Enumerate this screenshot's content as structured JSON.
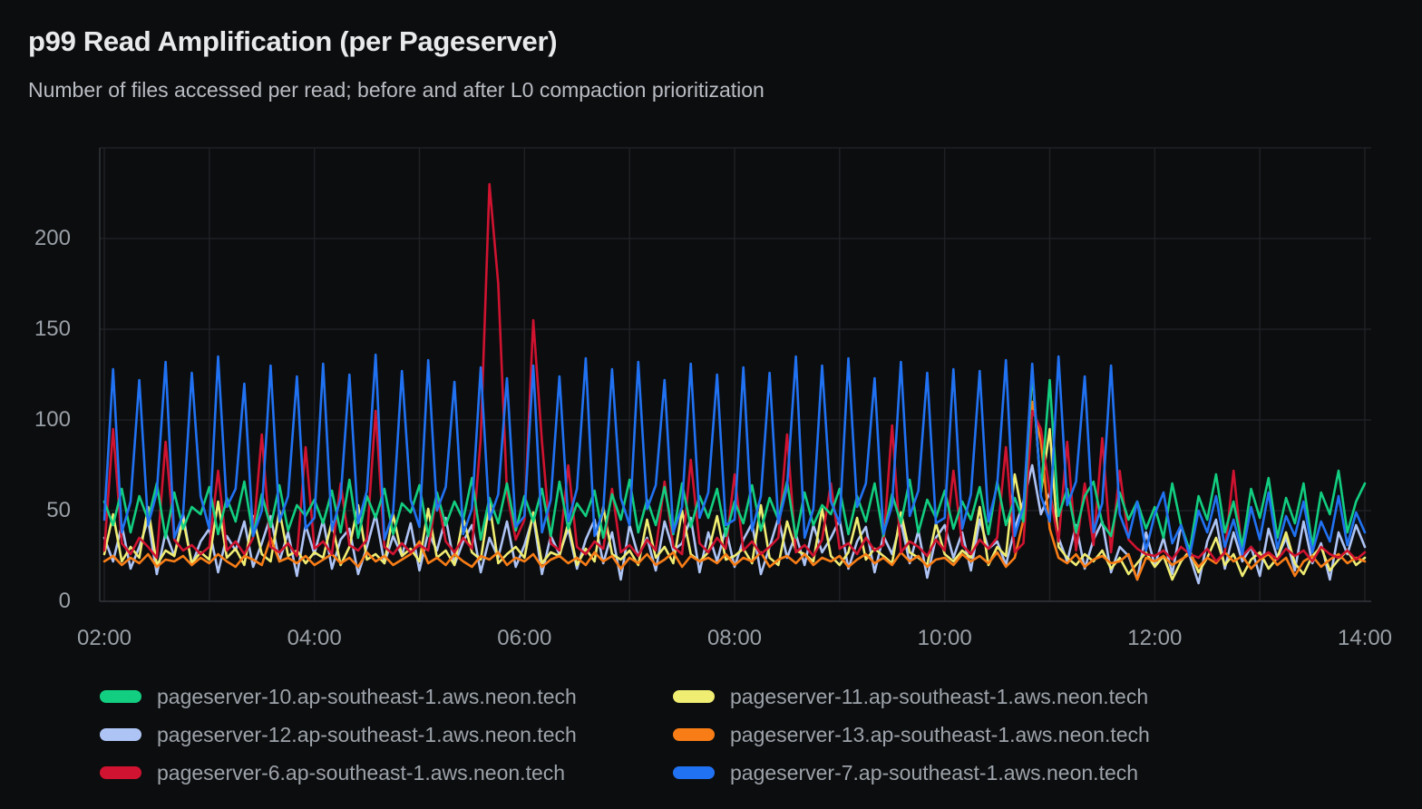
{
  "panel": {
    "title": "p99 Read Amplification (per Pageserver)",
    "subtitle": "Number of files accessed per read; before and after L0 compaction prioritization"
  },
  "colors": {
    "background": "#0c0d0f",
    "gridline": "#1e2024",
    "axis_line": "#32363c",
    "title_text": "#e8eaec",
    "subtitle_text": "#b9bdc3",
    "tick_text": "#9aa0a7",
    "legend_text": "#9da3aa"
  },
  "chart_data": {
    "type": "line",
    "title": "p99 Read Amplification (per Pageserver)",
    "subtitle": "Number of files accessed per read; before and after L0 compaction prioritization",
    "xlabel": "",
    "ylabel": "",
    "grid": "on",
    "legend_position": "bottom",
    "ylim": [
      0,
      250
    ],
    "y_ticks": [
      0,
      50,
      100,
      150,
      200
    ],
    "x_tick_labels": [
      "02:00",
      "04:00",
      "06:00",
      "08:00",
      "10:00",
      "12:00",
      "14:00"
    ],
    "x_tick_hours": [
      2,
      4,
      6,
      8,
      10,
      12,
      14
    ],
    "x_start_minutes": 120,
    "x_step_minutes": 5,
    "draw_order": [
      2,
      1,
      3,
      4,
      0,
      5
    ],
    "series": [
      {
        "name": "pageserver-10.ap-southeast-1.aws.neon.tech",
        "color": "#12ce80",
        "values": [
          55,
          42,
          62,
          38,
          58,
          45,
          65,
          35,
          60,
          40,
          52,
          48,
          63,
          37,
          57,
          44,
          66,
          36,
          59,
          41,
          64,
          39,
          53,
          47,
          56,
          43,
          61,
          38,
          67,
          35,
          58,
          46,
          62,
          37,
          54,
          49,
          64,
          36,
          60,
          42,
          55,
          45,
          68,
          34,
          57,
          43,
          65,
          39,
          58,
          44,
          62,
          36,
          66,
          40,
          54,
          47,
          61,
          35,
          59,
          45,
          67,
          38,
          56,
          42,
          63,
          37,
          65,
          41,
          58,
          46,
          62,
          36,
          55,
          43,
          64,
          39,
          57,
          45,
          66,
          35,
          60,
          42,
          53,
          48,
          62,
          37,
          58,
          44,
          65,
          36,
          59,
          43,
          67,
          38,
          56,
          46,
          61,
          40,
          55,
          45,
          63,
          37,
          66,
          42,
          57,
          44,
          128,
          60,
          122,
          47,
          62,
          38,
          58,
          66,
          43,
          36,
          60,
          45,
          55,
          40,
          52,
          35,
          65,
          42,
          28,
          58,
          45,
          70,
          38,
          55,
          30,
          62,
          46,
          68,
          35,
          57,
          43,
          65,
          30,
          60,
          48,
          72,
          38,
          55,
          65
        ]
      },
      {
        "name": "pageserver-11.ap-southeast-1.aws.neon.tech",
        "color": "#efed72",
        "values": [
          26,
          48,
          22,
          30,
          24,
          52,
          20,
          28,
          25,
          45,
          21,
          27,
          23,
          55,
          24,
          29,
          20,
          47,
          26,
          22,
          50,
          25,
          28,
          21,
          27,
          24,
          44,
          20,
          30,
          53,
          23,
          26,
          21,
          48,
          25,
          29,
          22,
          51,
          24,
          28,
          20,
          46,
          27,
          23,
          54,
          21,
          26,
          30,
          24,
          49,
          21,
          27,
          25,
          43,
          20,
          29,
          22,
          52,
          26,
          23,
          28,
          20,
          45,
          24,
          30,
          21,
          50,
          26,
          22,
          27,
          47,
          23,
          25,
          29,
          21,
          53,
          24,
          20,
          44,
          28,
          26,
          22,
          51,
          25,
          20,
          27,
          46,
          23,
          29,
          25,
          21,
          49,
          27,
          24,
          20,
          43,
          26,
          22,
          28,
          24,
          52,
          20,
          30,
          25,
          70,
          45,
          127,
          60,
          95,
          30,
          24,
          20,
          26,
          22,
          28,
          18,
          24,
          15,
          21,
          27,
          19,
          25,
          12,
          22,
          28,
          16,
          24,
          35,
          20,
          26,
          14,
          23,
          27,
          18,
          24,
          38,
          21,
          15,
          25,
          30,
          17,
          23,
          28,
          20,
          24
        ]
      },
      {
        "name": "pageserver-12.ap-southeast-1.aws.neon.tech",
        "color": "#aec4f5",
        "values": [
          35,
          22,
          42,
          18,
          30,
          45,
          15,
          38,
          25,
          48,
          20,
          33,
          40,
          16,
          36,
          28,
          44,
          19,
          32,
          47,
          22,
          38,
          14,
          42,
          26,
          45,
          18,
          34,
          40,
          15,
          30,
          48,
          21,
          36,
          25,
          43,
          17,
          38,
          28,
          46,
          20,
          33,
          42,
          16,
          35,
          24,
          44,
          19,
          31,
          47,
          15,
          36,
          26,
          40,
          18,
          34,
          45,
          21,
          38,
          12,
          42,
          25,
          35,
          17,
          44,
          28,
          32,
          46,
          16,
          38,
          22,
          40,
          19,
          34,
          43,
          15,
          30,
          46,
          24,
          37,
          20,
          42,
          27,
          35,
          45,
          18,
          33,
          41,
          16,
          36,
          26,
          44,
          21,
          39,
          13,
          35,
          42,
          24,
          38,
          17,
          45,
          29,
          33,
          20,
          40,
          55,
          75,
          48,
          60,
          35,
          22,
          42,
          18,
          34,
          44,
          16,
          30,
          25,
          12,
          38,
          20,
          35,
          15,
          42,
          25,
          10,
          33,
          45,
          18,
          38,
          22,
          30,
          14,
          40,
          24,
          35,
          17,
          44,
          21,
          32,
          12,
          38,
          26,
          42,
          30
        ]
      },
      {
        "name": "pageserver-13.ap-southeast-1.aws.neon.tech",
        "color": "#f87d16",
        "values": [
          22,
          25,
          20,
          24,
          21,
          26,
          19,
          23,
          22,
          25,
          20,
          24,
          21,
          26,
          22,
          19,
          25,
          23,
          20,
          35,
          22,
          24,
          21,
          25,
          20,
          23,
          26,
          21,
          24,
          19,
          27,
          22,
          25,
          20,
          23,
          26,
          33,
          21,
          24,
          20,
          26,
          22,
          19,
          25,
          23,
          27,
          20,
          24,
          22,
          26,
          19,
          23,
          25,
          21,
          24,
          20,
          27,
          22,
          25,
          18,
          24,
          21,
          26,
          20,
          23,
          27,
          19,
          25,
          22,
          24,
          21,
          26,
          20,
          24,
          22,
          27,
          19,
          23,
          25,
          21,
          26,
          20,
          24,
          22,
          25,
          19,
          23,
          26,
          21,
          24,
          20,
          27,
          22,
          25,
          19,
          23,
          24,
          20,
          26,
          22,
          25,
          21,
          27,
          19,
          24,
          45,
          110,
          88,
          40,
          24,
          21,
          26,
          19,
          23,
          25,
          21,
          22,
          26,
          12,
          24,
          22,
          25,
          20,
          23,
          26,
          19,
          24,
          21,
          27,
          22,
          25,
          18,
          23,
          26,
          20,
          24,
          14,
          22,
          25,
          19,
          23,
          26,
          21,
          24,
          22
        ]
      },
      {
        "name": "pageserver-6.ap-southeast-1.aws.neon.tech",
        "color": "#d01330",
        "values": [
          28,
          95,
          32,
          26,
          35,
          30,
          24,
          88,
          34,
          28,
          31,
          26,
          30,
          72,
          28,
          33,
          26,
          35,
          92,
          30,
          27,
          32,
          25,
          85,
          29,
          33,
          26,
          65,
          31,
          28,
          34,
          105,
          30,
          26,
          32,
          27,
          31,
          28,
          60,
          33,
          27,
          35,
          29,
          90,
          230,
          175,
          60,
          34,
          45,
          155,
          88,
          32,
          28,
          75,
          30,
          26,
          33,
          29,
          62,
          27,
          31,
          25,
          34,
          28,
          66,
          30,
          26,
          78,
          32,
          27,
          35,
          29,
          70,
          28,
          33,
          26,
          30,
          35,
          92,
          27,
          31,
          25,
          34,
          65,
          29,
          32,
          26,
          35,
          28,
          31,
          97,
          27,
          33,
          30,
          25,
          34,
          28,
          72,
          31,
          26,
          34,
          29,
          35,
          85,
          27,
          32,
          105,
          95,
          60,
          33,
          88,
          28,
          65,
          31,
          90,
          27,
          72,
          34,
          29,
          26,
          25,
          28,
          23,
          30,
          26,
          24,
          29,
          22,
          27,
          72,
          25,
          30,
          24,
          27,
          23,
          29,
          25,
          28,
          22,
          30,
          26,
          24,
          28,
          23,
          27
        ]
      },
      {
        "name": "pageserver-7.ap-southeast-1.aws.neon.tech",
        "color": "#2172f2",
        "values": [
          45,
          128,
          38,
          55,
          122,
          42,
          60,
          132,
          35,
          48,
          126,
          58,
          40,
          135,
          52,
          62,
          120,
          36,
          50,
          130,
          44,
          58,
          124,
          40,
          46,
          131,
          39,
          57,
          125,
          43,
          61,
          136,
          34,
          49,
          127,
          56,
          41,
          133,
          50,
          63,
          121,
          37,
          51,
          129,
          45,
          59,
          123,
          41,
          47,
          130,
          38,
          56,
          124,
          44,
          62,
          134,
          36,
          50,
          128,
          57,
          42,
          132,
          51,
          64,
          122,
          38,
          52,
          131,
          46,
          60,
          125,
          42,
          45,
          129,
          39,
          58,
          126,
          43,
          63,
          135,
          35,
          51,
          130,
          55,
          43,
          134,
          52,
          65,
          123,
          37,
          53,
          132,
          47,
          61,
          126,
          43,
          46,
          128,
          40,
          59,
          127,
          44,
          64,
          133,
          36,
          52,
          131,
          58,
          44,
          135,
          53,
          66,
          124,
          38,
          54,
          130,
          48,
          35,
          55,
          28,
          48,
          60,
          32,
          42,
          25,
          50,
          38,
          58,
          30,
          45,
          26,
          52,
          34,
          60,
          29,
          47,
          36,
          55,
          27,
          44,
          33,
          58,
          31,
          49,
          38
        ]
      }
    ]
  }
}
